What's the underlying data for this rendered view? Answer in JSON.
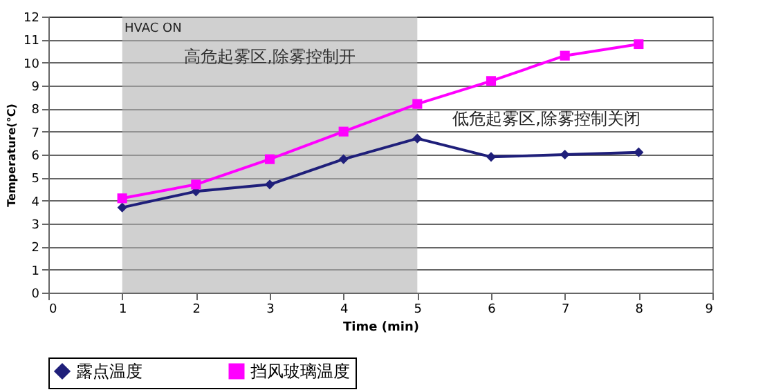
{
  "chart_data": {
    "type": "line",
    "xlabel": "Time (min)",
    "ylabel": "Temperature(°C)",
    "x": [
      1,
      2,
      3,
      4,
      5,
      6,
      7,
      8
    ],
    "series": [
      {
        "name": "露点温度",
        "color": "#1f1f7a",
        "marker": "diamond",
        "values": [
          3.7,
          4.4,
          4.7,
          5.8,
          6.7,
          5.9,
          6.0,
          6.1
        ]
      },
      {
        "name": "挡风玻璃温度",
        "color": "#ff00ff",
        "marker": "square",
        "values": [
          4.1,
          4.7,
          5.8,
          7.0,
          8.2,
          9.2,
          10.3,
          10.8
        ]
      }
    ],
    "xlim": [
      0,
      9
    ],
    "xticks": [
      0,
      1,
      2,
      3,
      4,
      5,
      6,
      7,
      8,
      9
    ],
    "ylim": [
      0,
      12
    ],
    "yticks": [
      0,
      1,
      2,
      3,
      4,
      5,
      6,
      7,
      8,
      9,
      10,
      11,
      12
    ],
    "bands": [
      {
        "axis": "x",
        "from": 1,
        "to": 5,
        "label": "高危起雾区,除雾控制开",
        "color": "#b0b0b0"
      }
    ],
    "annotations": [
      "HVAC ON",
      "低危起雾区,除雾控制关闭"
    ],
    "grid": "y",
    "legend": "bottom",
    "line_style": "solid"
  }
}
